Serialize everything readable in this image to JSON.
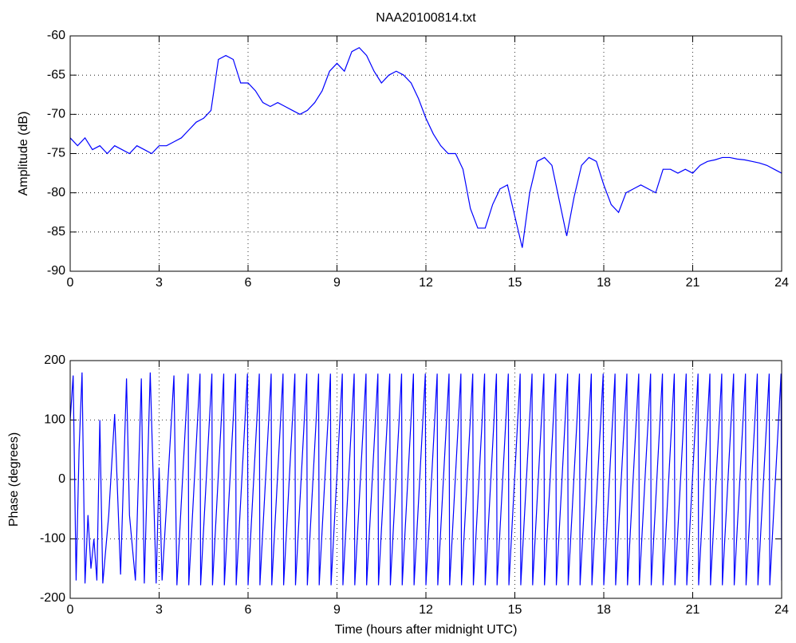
{
  "chart_data": [
    {
      "type": "line",
      "title": "NAA20100814.txt",
      "y_label": "Amplitude (dB)",
      "color": "#0000ff",
      "grid": true,
      "xlim": [
        0,
        24
      ],
      "xticks": [
        0,
        3,
        6,
        9,
        12,
        15,
        18,
        21,
        24
      ],
      "ylim": [
        -90,
        -60
      ],
      "yticks": [
        -90,
        -85,
        -80,
        -75,
        -70,
        -65,
        -60
      ],
      "x": [
        0,
        0.25,
        0.5,
        0.75,
        1,
        1.25,
        1.5,
        1.75,
        2,
        2.25,
        2.5,
        2.75,
        3,
        3.25,
        3.5,
        3.75,
        4,
        4.25,
        4.5,
        4.75,
        5,
        5.25,
        5.5,
        5.75,
        6,
        6.25,
        6.5,
        6.75,
        7,
        7.25,
        7.5,
        7.75,
        8,
        8.25,
        8.5,
        8.75,
        9,
        9.25,
        9.5,
        9.75,
        10,
        10.25,
        10.5,
        10.75,
        11,
        11.25,
        11.5,
        11.75,
        12,
        12.25,
        12.5,
        12.75,
        13,
        13.25,
        13.5,
        13.75,
        14,
        14.25,
        14.5,
        14.75,
        15,
        15.25,
        15.5,
        15.75,
        16,
        16.25,
        16.5,
        16.75,
        17,
        17.25,
        17.5,
        17.75,
        18,
        18.25,
        18.5,
        18.75,
        19,
        19.25,
        19.5,
        19.75,
        20,
        20.25,
        20.5,
        20.75,
        21,
        21.25,
        21.5,
        21.75,
        22,
        22.25,
        22.5,
        22.75,
        23,
        23.25,
        23.5,
        23.75,
        24
      ],
      "values": [
        -73,
        -74,
        -73,
        -74.5,
        -74,
        -75,
        -74,
        -74.5,
        -75,
        -74,
        -74.5,
        -75,
        -74,
        -74,
        -73.5,
        -73,
        -72,
        -71,
        -70.5,
        -69.5,
        -63,
        -62.5,
        -63,
        -66,
        -66,
        -67,
        -68.5,
        -69,
        -68.5,
        -69,
        -69.5,
        -70,
        -69.5,
        -68.5,
        -67,
        -64.5,
        -63.5,
        -64.5,
        -62,
        -61.5,
        -62.5,
        -64.5,
        -66,
        -65,
        -64.5,
        -65,
        -66,
        -68,
        -70.5,
        -72.5,
        -74,
        -75,
        -75,
        -77,
        -82,
        -84.5,
        -84.5,
        -81.5,
        -79.5,
        -79,
        -83,
        -87,
        -80,
        -76,
        -75.5,
        -76.5,
        -81,
        -85.5,
        -80.5,
        -76.5,
        -75.5,
        -76,
        -79,
        -81.5,
        -82.5,
        -80,
        -79.5,
        -79,
        -79.5,
        -80,
        -77,
        -77,
        -77.5,
        -77,
        -77.5,
        -76.5,
        -76,
        -75.8,
        -75.5,
        -75.5,
        -75.7,
        -75.8,
        -76,
        -76.2,
        -76.5,
        -77,
        -77.5
      ]
    },
    {
      "type": "line",
      "y_label": "Phase (degrees)",
      "x_label": "Time (hours after midnight UTC)",
      "color": "#0000ff",
      "grid": true,
      "xlim": [
        0,
        24
      ],
      "xticks": [
        0,
        3,
        6,
        9,
        12,
        15,
        18,
        21,
        24
      ],
      "ylim": [
        -200,
        200
      ],
      "yticks": [
        -200,
        -100,
        0,
        100,
        200
      ],
      "x": [
        0,
        0.1,
        0.2,
        0.3,
        0.4,
        0.5,
        0.6,
        0.7,
        0.8,
        0.9,
        1.0,
        1.1,
        1.3,
        1.5,
        1.7,
        1.9,
        2.0,
        2.2,
        2.4,
        2.5,
        2.7,
        2.9,
        3.0,
        3.1,
        3.3,
        3.5,
        3.6,
        3.98,
        4.0,
        4.38,
        4.4,
        4.78,
        4.8,
        5.18,
        5.2,
        5.58,
        5.6,
        5.98,
        6.0,
        6.38,
        6.4,
        6.78,
        6.8,
        7.18,
        7.2,
        7.58,
        7.6,
        7.98,
        8.0,
        8.38,
        8.4,
        8.78,
        8.8,
        9.18,
        9.2,
        9.58,
        9.6,
        9.98,
        10.0,
        10.38,
        10.4,
        10.78,
        10.8,
        11.18,
        11.2,
        11.58,
        11.6,
        11.98,
        12.0,
        12.38,
        12.4,
        12.78,
        12.8,
        13.18,
        13.2,
        13.58,
        13.6,
        13.98,
        14.0,
        14.38,
        14.4,
        14.78,
        14.8,
        15.18,
        15.2,
        15.58,
        15.6,
        15.98,
        16.0,
        16.38,
        16.4,
        16.78,
        16.8,
        17.18,
        17.2,
        17.58,
        17.6,
        17.98,
        18.0,
        18.38,
        18.4,
        18.78,
        18.8,
        19.18,
        19.2,
        19.58,
        19.6,
        19.98,
        20.0,
        20.38,
        20.4,
        20.78,
        20.8,
        21.18,
        21.2,
        21.58,
        21.6,
        21.98,
        22.0,
        22.38,
        22.4,
        22.78,
        22.8,
        23.18,
        23.2,
        23.58,
        23.6,
        23.98,
        24.0
      ],
      "values": [
        100,
        175,
        -170,
        50,
        180,
        -175,
        -60,
        -150,
        -100,
        -170,
        100,
        -175,
        -60,
        110,
        -160,
        170,
        -60,
        -170,
        170,
        -175,
        180,
        -175,
        20,
        -170,
        0,
        175,
        -178,
        178,
        -178,
        178,
        -178,
        178,
        -178,
        178,
        -178,
        178,
        -178,
        178,
        -178,
        178,
        -178,
        178,
        -178,
        178,
        -178,
        178,
        -178,
        178,
        -178,
        178,
        -178,
        178,
        -178,
        178,
        -178,
        178,
        -178,
        178,
        -178,
        178,
        -178,
        178,
        -178,
        178,
        -178,
        178,
        -178,
        178,
        -178,
        178,
        -178,
        178,
        -178,
        178,
        -178,
        178,
        -178,
        178,
        -178,
        178,
        -178,
        178,
        -178,
        178,
        -178,
        178,
        -178,
        178,
        -178,
        178,
        -178,
        178,
        -178,
        178,
        -178,
        178,
        -178,
        178,
        -178,
        178,
        -178,
        178,
        -178,
        178,
        -178,
        178,
        -178,
        178,
        -178,
        178,
        -178,
        178,
        -178,
        178,
        -178,
        178,
        -178,
        178,
        -178,
        178,
        -178,
        178,
        -178,
        178,
        -178,
        178,
        -178,
        178,
        -170
      ]
    }
  ]
}
